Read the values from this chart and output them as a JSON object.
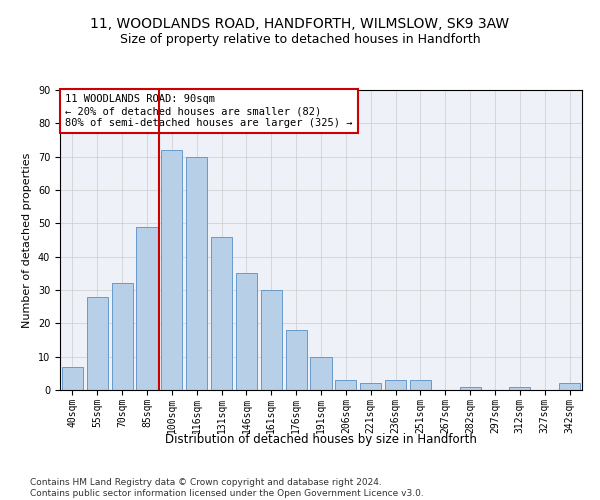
{
  "title": "11, WOODLANDS ROAD, HANDFORTH, WILMSLOW, SK9 3AW",
  "subtitle": "Size of property relative to detached houses in Handforth",
  "xlabel": "Distribution of detached houses by size in Handforth",
  "ylabel": "Number of detached properties",
  "bar_labels": [
    "40sqm",
    "55sqm",
    "70sqm",
    "85sqm",
    "100sqm",
    "116sqm",
    "131sqm",
    "146sqm",
    "161sqm",
    "176sqm",
    "191sqm",
    "206sqm",
    "221sqm",
    "236sqm",
    "251sqm",
    "267sqm",
    "282sqm",
    "297sqm",
    "312sqm",
    "327sqm",
    "342sqm"
  ],
  "bar_values": [
    7,
    28,
    32,
    49,
    72,
    70,
    46,
    35,
    30,
    18,
    10,
    3,
    2,
    3,
    3,
    0,
    1,
    0,
    1,
    0,
    2
  ],
  "bar_color": "#b8cfe8",
  "bar_edge_color": "#6699cc",
  "vline_x": 3.5,
  "vline_color": "#cc0000",
  "annotation_text": "11 WOODLANDS ROAD: 90sqm\n← 20% of detached houses are smaller (82)\n80% of semi-detached houses are larger (325) →",
  "annotation_box_color": "#ffffff",
  "annotation_box_edge": "#cc0000",
  "ylim": [
    0,
    90
  ],
  "yticks": [
    0,
    10,
    20,
    30,
    40,
    50,
    60,
    70,
    80,
    90
  ],
  "footer": "Contains HM Land Registry data © Crown copyright and database right 2024.\nContains public sector information licensed under the Open Government Licence v3.0.",
  "bg_color": "#eef2f8",
  "title_fontsize": 10,
  "subtitle_fontsize": 9,
  "xlabel_fontsize": 8.5,
  "ylabel_fontsize": 8,
  "tick_fontsize": 7,
  "footer_fontsize": 6.5,
  "annot_fontsize": 7.5
}
